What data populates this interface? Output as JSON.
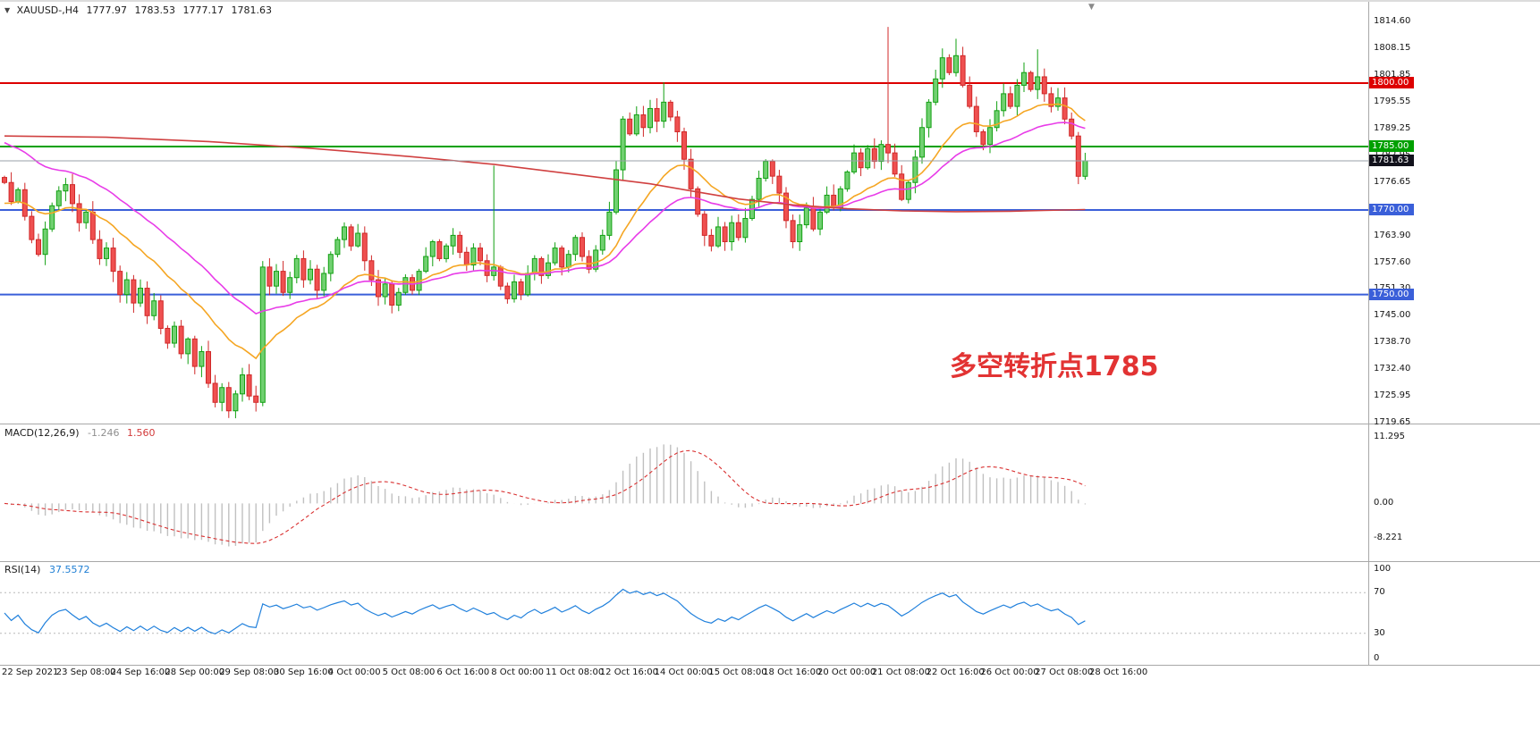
{
  "chart_data": {
    "type": "candlestick",
    "symbol_info": {
      "collapse_icon": "▼",
      "symbol_period": "XAUUSD-,H4",
      "open": "1777.97",
      "high": "1783.53",
      "low": "1777.17",
      "close": "1781.63"
    },
    "icons": {
      "scroll_anchor": "▼"
    },
    "price_axis": {
      "max": 1818.4,
      "min": 1719.7,
      "ticks": [
        "1814.60",
        "1808.15",
        "1801.85",
        "1795.55",
        "1789.25",
        "1782.95",
        "1776.65",
        "1770.35",
        "1763.90",
        "1757.60",
        "1751.30",
        "1745.00",
        "1738.70",
        "1732.40",
        "1725.95",
        "1719.65"
      ]
    },
    "time_axis": [
      "22 Sep 2021",
      "23 Sep 08:00",
      "24 Sep 16:00",
      "28 Sep 00:00",
      "29 Sep 08:00",
      "30 Sep 16:00",
      "4 Oct 00:00",
      "5 Oct 08:00",
      "6 Oct 16:00",
      "8 Oct 00:00",
      "11 Oct 08:00",
      "12 Oct 16:00",
      "14 Oct 00:00",
      "15 Oct 08:00",
      "18 Oct 16:00",
      "20 Oct 00:00",
      "21 Oct 08:00",
      "22 Oct 16:00",
      "26 Oct 00:00",
      "27 Oct 08:00",
      "28 Oct 16:00"
    ],
    "levels": [
      {
        "price": 1800.0,
        "label": "1800.00",
        "color": "#dd0000"
      },
      {
        "price": 1785.0,
        "label": "1785.00",
        "color": "#00a000"
      },
      {
        "price": 1770.0,
        "label": "1770.00",
        "color": "#3a5fd9"
      },
      {
        "price": 1750.0,
        "label": "1750.00",
        "color": "#3a5fd9"
      }
    ],
    "bid": {
      "price": 1781.63,
      "label": "1781.63",
      "line_color": "#9aa0a8",
      "tag_color": "#12121c"
    },
    "annotation": {
      "text": "多空转折点1785",
      "color": "#e23333"
    },
    "colors": {
      "bull": "#12a012",
      "bull_fill": "#71d071",
      "bear": "#d02828",
      "bear_fill": "#ef5050",
      "ma_fast": "#f5a623",
      "ma_mid": "#e83ce8",
      "ma_slow": "#d04040",
      "macd_hist": "#c0c0c0",
      "macd_signal": "#d93030",
      "rsi": "#2080dc"
    },
    "closes": [
      1776.5,
      1772.0,
      1774.8,
      1768.5,
      1763.0,
      1759.5,
      1765.5,
      1771.0,
      1774.5,
      1776.0,
      1771.5,
      1767.0,
      1769.5,
      1763.0,
      1758.5,
      1761.0,
      1755.5,
      1750.0,
      1753.5,
      1748.0,
      1751.5,
      1745.0,
      1748.5,
      1742.0,
      1738.5,
      1742.5,
      1736.0,
      1739.5,
      1733.0,
      1736.5,
      1729.0,
      1724.5,
      1728.0,
      1722.5,
      1726.5,
      1731.0,
      1726.0,
      1724.5,
      1756.5,
      1752.0,
      1755.5,
      1750.5,
      1754.0,
      1758.5,
      1753.5,
      1756.0,
      1751.0,
      1755.0,
      1759.5,
      1763.0,
      1766.0,
      1761.5,
      1764.5,
      1758.0,
      1753.5,
      1749.5,
      1752.5,
      1747.5,
      1750.5,
      1754.0,
      1751.0,
      1755.5,
      1759.0,
      1762.5,
      1758.5,
      1761.5,
      1764.0,
      1760.0,
      1757.0,
      1761.0,
      1758.0,
      1754.5,
      1756.5,
      1752.0,
      1749.0,
      1753.0,
      1750.0,
      1755.0,
      1758.5,
      1754.5,
      1757.5,
      1761.0,
      1756.5,
      1759.5,
      1763.5,
      1759.0,
      1756.0,
      1760.5,
      1764.0,
      1769.5,
      1779.5,
      1791.5,
      1788.0,
      1792.5,
      1789.5,
      1794.0,
      1791.0,
      1795.5,
      1792.0,
      1788.5,
      1782.0,
      1775.0,
      1769.0,
      1764.0,
      1761.5,
      1766.0,
      1762.5,
      1767.0,
      1763.5,
      1768.0,
      1772.5,
      1777.5,
      1781.5,
      1778.0,
      1774.0,
      1767.5,
      1762.5,
      1766.5,
      1770.5,
      1765.5,
      1769.5,
      1773.5,
      1770.5,
      1775.0,
      1779.0,
      1783.5,
      1780.0,
      1784.5,
      1781.5,
      1785.5,
      1783.5,
      1778.5,
      1772.5,
      1776.5,
      1782.5,
      1789.5,
      1795.5,
      1801.0,
      1806.0,
      1802.5,
      1806.5,
      1799.5,
      1794.5,
      1788.5,
      1785.5,
      1789.5,
      1793.5,
      1797.5,
      1794.5,
      1799.5,
      1802.5,
      1798.5,
      1801.5,
      1797.5,
      1794.5,
      1796.5,
      1791.5,
      1787.5,
      1777.97,
      1781.63
    ],
    "wick_overrides": {
      "33": {
        "low": 1720.8
      },
      "72": {
        "high": 1780.5
      },
      "97": {
        "high": 1800.2
      },
      "130": {
        "high": 1813.3
      },
      "140": {
        "high": 1810.5
      },
      "152": {
        "high": 1808.0
      },
      "159": {
        "high": 1783.53,
        "low": 1777.17
      }
    },
    "ma": [
      {
        "period": 18,
        "init": 1771.0,
        "key": "ma_fast"
      },
      {
        "period": 34,
        "init": 1786.5,
        "key": "ma_mid"
      }
    ],
    "ma_slow_path": [
      [
        0,
        1787.5
      ],
      [
        15,
        1787.2
      ],
      [
        30,
        1786.2
      ],
      [
        45,
        1784.6
      ],
      [
        60,
        1782.6
      ],
      [
        72,
        1780.8
      ],
      [
        85,
        1778.2
      ],
      [
        95,
        1776.2
      ],
      [
        100,
        1774.8
      ],
      [
        108,
        1772.6
      ],
      [
        116,
        1771.2
      ],
      [
        124,
        1770.3
      ],
      [
        132,
        1769.8
      ],
      [
        140,
        1769.6
      ],
      [
        148,
        1769.7
      ],
      [
        153,
        1769.9
      ],
      [
        159,
        1770.1
      ]
    ],
    "macd": {
      "name": "MACD(12,26,9)",
      "main_value": "-1.246",
      "signal_value": "1.560",
      "fast": 12,
      "slow": 26,
      "signal_period": 9,
      "axis": [
        "11.295",
        "0.00",
        "-8.221"
      ],
      "max": 11.295,
      "min": -8.221
    },
    "rsi": {
      "name": "RSI(14)",
      "period": 14,
      "value": "37.5572",
      "axis": [
        "100",
        "70",
        "30",
        "0"
      ],
      "levels": [
        70,
        30
      ],
      "range": [
        0,
        100
      ]
    }
  }
}
